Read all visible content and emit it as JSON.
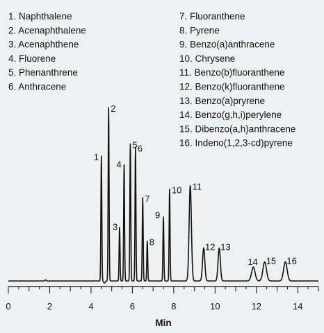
{
  "chart_data": {
    "type": "line",
    "xlabel": "Min",
    "ylabel": "",
    "xlim": [
      0,
      15
    ],
    "ylim": [
      0,
      1
    ],
    "xticks": [
      "0",
      "2",
      "4",
      "6",
      "8",
      "10",
      "12",
      "14"
    ],
    "grid": false,
    "legend_position": "top",
    "legend": [
      "1. Naphthalene",
      "2. Acenaphthalene",
      "3. Acenaphthene",
      "4. Fluorene",
      "5. Phenanthrene",
      "6. Anthracene",
      "7. Fluoranthene",
      "8. Pyrene",
      "9. Benzo(a)anthracene",
      "10. Chrysene",
      "11. Benzo(b)fluoranthene",
      "12. Benzo(k)fluoranthene",
      "13. Benzo(a)pryrene",
      "14. Benzo(g,h,i)perylene",
      "15. Dibenzo(a,h)anthracene",
      "16. Indeno(1,2,3-cd)pyrene"
    ],
    "peaks": [
      {
        "label": "1",
        "x": 4.5,
        "y": 0.72
      },
      {
        "label": "2",
        "x": 4.85,
        "y": 1.0
      },
      {
        "label": "3",
        "x": 5.38,
        "y": 0.31
      },
      {
        "label": "4",
        "x": 5.6,
        "y": 0.67
      },
      {
        "label": "5",
        "x": 5.9,
        "y": 0.79
      },
      {
        "label": "6",
        "x": 6.15,
        "y": 0.77
      },
      {
        "label": "7",
        "x": 6.5,
        "y": 0.48
      },
      {
        "label": "8",
        "x": 6.72,
        "y": 0.23
      },
      {
        "label": "9",
        "x": 7.5,
        "y": 0.37
      },
      {
        "label": "10",
        "x": 7.8,
        "y": 0.53
      },
      {
        "label": "11",
        "x": 8.8,
        "y": 0.55
      },
      {
        "label": "12",
        "x": 9.45,
        "y": 0.19
      },
      {
        "label": "13",
        "x": 10.2,
        "y": 0.19
      },
      {
        "label": "14",
        "x": 11.85,
        "y": 0.08
      },
      {
        "label": "15",
        "x": 12.4,
        "y": 0.11
      },
      {
        "label": "16",
        "x": 13.4,
        "y": 0.11
      }
    ]
  }
}
